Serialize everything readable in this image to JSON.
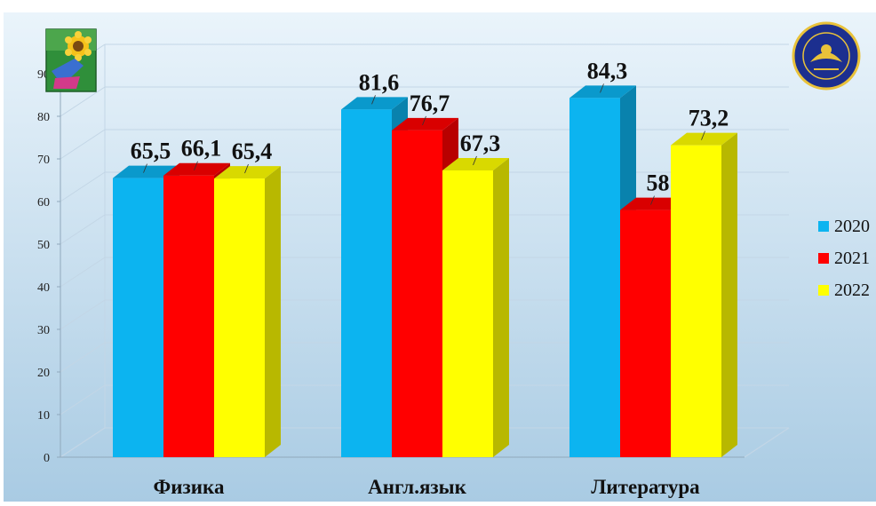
{
  "chart_data": {
    "type": "bar",
    "title": "",
    "xlabel": "",
    "ylabel": "",
    "categories": [
      "Физика",
      "Англ.язык",
      "Литература"
    ],
    "series": [
      {
        "name": "2020",
        "color": "#0cb4f0",
        "values": [
          65.5,
          81.6,
          84.3
        ],
        "labels": [
          "65,5",
          "81,6",
          "84,3"
        ]
      },
      {
        "name": "2021",
        "color": "#ff0000",
        "values": [
          66.1,
          76.7,
          58
        ],
        "labels": [
          "66,1",
          "76,7",
          "58"
        ]
      },
      {
        "name": "2022",
        "color": "#ffff00",
        "values": [
          65.4,
          67.3,
          73.2
        ],
        "labels": [
          "65,4",
          "67,3",
          "73,2"
        ]
      }
    ],
    "ylim": [
      0,
      90
    ],
    "yticks": [
      0,
      10,
      20,
      30,
      40,
      50,
      60,
      70,
      80,
      90
    ],
    "grid": true,
    "legend_position": "right",
    "style": "3d-columns",
    "background": "light-blue-gradient"
  },
  "logos": {
    "left": "sunflower-coat-of-arms",
    "right": "blue-round-emblem"
  },
  "colors": {
    "bg_top": "#eaf4fb",
    "bg_bottom": "#a9cbe3"
  }
}
